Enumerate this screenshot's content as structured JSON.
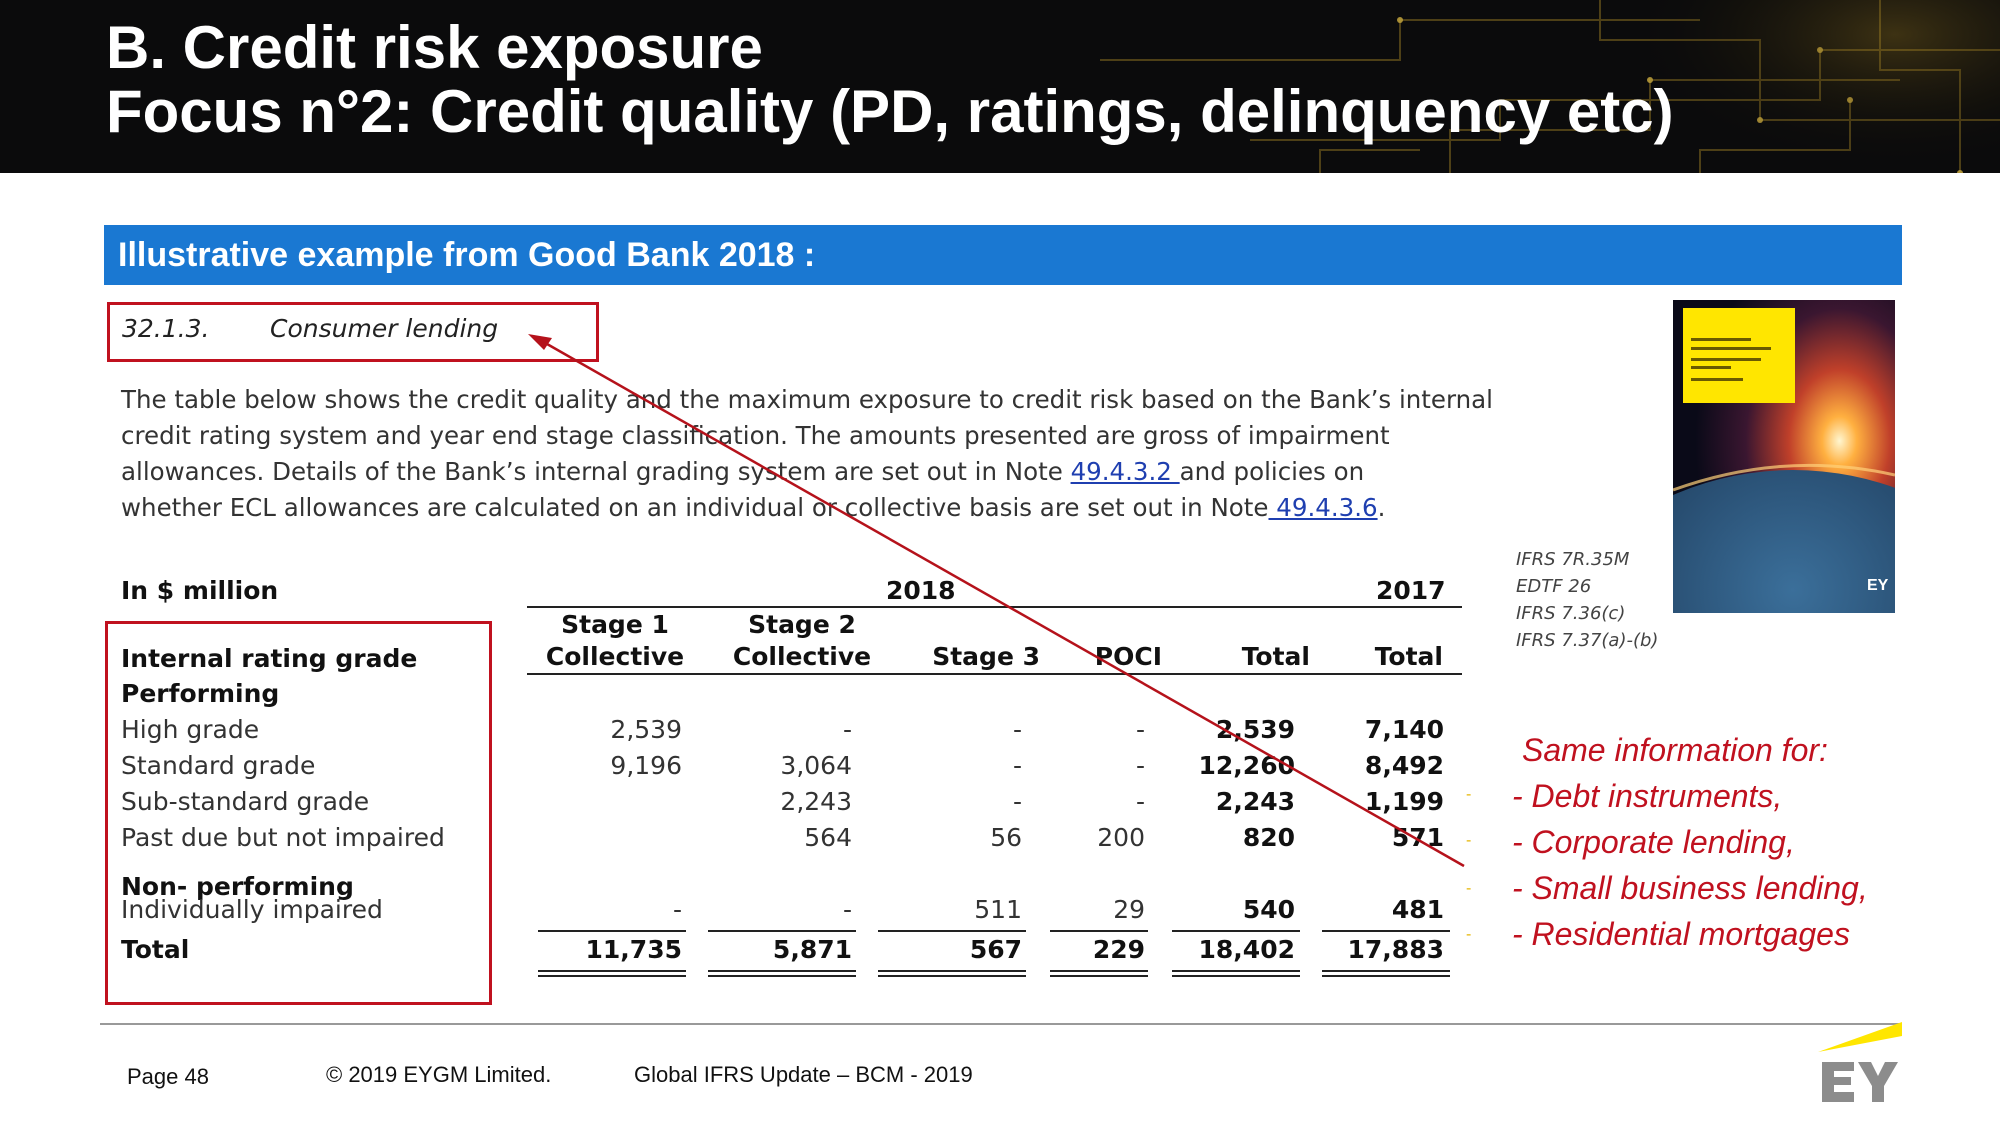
{
  "title": {
    "line1": "B. Credit risk exposure",
    "line2": "Focus n°2: Credit quality (PD, ratings, delinquency etc)"
  },
  "section_bar": "Illustrative example from Good Bank 2018 :",
  "excerpt": {
    "heading_number": "32.1.3.",
    "heading_text": "Consumer lending",
    "para_line1": "The table below shows the credit quality and the maximum exposure to credit risk based on the Bank’s internal",
    "para_line2": "credit rating system and year end stage classification. The amounts presented are gross of impairment",
    "para_line3_a": "allowances. Details of the Bank’s internal grading system are set out in Note ",
    "para_line3_link": "49.4.3.2 ",
    "para_line3_b": "and policies on",
    "para_line4_a": "whether ECL allowances are calculated on an individual or collective basis are set out in Note",
    "para_line4_link": " 49.4.3.6",
    "para_line4_b": "."
  },
  "table": {
    "unit_label": "In $ million",
    "year_2018": "2018",
    "year_2017": "2017",
    "headers": {
      "stage1_l1": "Stage 1",
      "stage1_l2": "Collective",
      "stage2_l1": "Stage 2",
      "stage2_l2": "Collective",
      "stage3": "Stage 3",
      "poci": "POCI",
      "total": "Total",
      "total2017": "Total"
    },
    "label_rating": "Internal rating grade",
    "label_performing": "Performing",
    "label_nonperforming": "Non- performing",
    "rows": [
      {
        "label": "High grade",
        "s1": "2,539",
        "s2": "-",
        "s3": "-",
        "poci": "-",
        "total": "2,539",
        "total2017": "7,140"
      },
      {
        "label": "Standard grade",
        "s1": "9,196",
        "s2": "3,064",
        "s3": "-",
        "poci": "-",
        "total": "12,260",
        "total2017": "8,492"
      },
      {
        "label": "Sub-standard grade",
        "s1": "",
        "s2": "2,243",
        "s3": "-",
        "poci": "-",
        "total": "2,243",
        "total2017": "1,199"
      },
      {
        "label": "Past due but not impaired",
        "s1": "",
        "s2": "564",
        "s3": "56",
        "poci": "200",
        "total": "820",
        "total2017": "571"
      },
      {
        "label": "Individually impaired",
        "s1": "-",
        "s2": "-",
        "s3": "511",
        "poci": "29",
        "total": "540",
        "total2017": "481"
      }
    ],
    "total_row": {
      "label": "Total",
      "s1": "11,735",
      "s2": "5,871",
      "s3": "567",
      "poci": "229",
      "total": "18,402",
      "total2017": "17,883"
    }
  },
  "references": [
    "IFRS 7R.35M",
    "EDTF 26",
    "IFRS 7.36(c)",
    "IFRS 7.37(a)-(b)"
  ],
  "same_info": {
    "heading": "Same information for:",
    "items": [
      "- Debt instruments,",
      "- Corporate lending,",
      "- Small business lending,",
      "- Residential mortgages"
    ]
  },
  "footer": {
    "page": "Page 48",
    "copyright": "© 2019 EYGM Limited.",
    "event": "Global IFRS Update – BCM - 2019"
  },
  "colors": {
    "header_bg": "#0b0b0c",
    "section_blue": "#1a78d2",
    "highlight_red": "#c0111f",
    "link_blue": "#1f3fb0",
    "ey_yellow": "#ffe600"
  }
}
